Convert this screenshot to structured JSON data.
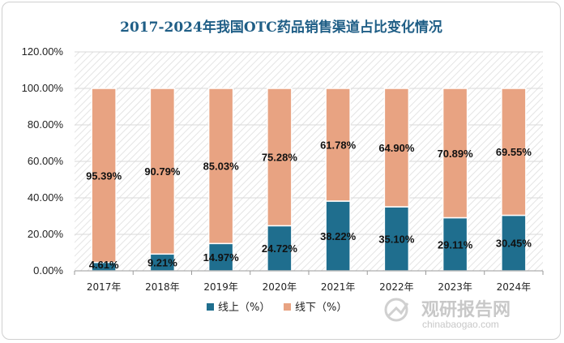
{
  "chart_data": {
    "type": "bar",
    "stacked": true,
    "title": "2017-2024年我国OTC药品销售渠道占比变化情况",
    "categories": [
      "2017年",
      "2018年",
      "2019年",
      "2020年",
      "2021年",
      "2022年",
      "2023年",
      "2024年"
    ],
    "series": [
      {
        "name": "线上（%）",
        "color": "#1f6e8e",
        "values": [
          4.61,
          9.21,
          14.97,
          24.72,
          38.22,
          35.1,
          29.11,
          30.45
        ],
        "labels": [
          "4.61%",
          "9.21%",
          "14.97%",
          "24.72%",
          "38.22%",
          "35.10%",
          "29.11%",
          "30.45%"
        ]
      },
      {
        "name": "线下（%）",
        "color": "#e8a382",
        "values": [
          95.39,
          90.79,
          85.03,
          75.28,
          61.78,
          64.9,
          70.89,
          69.55
        ],
        "labels": [
          "95.39%",
          "90.79%",
          "85.03%",
          "75.28%",
          "61.78%",
          "64.90%",
          "70.89%",
          "69.55%"
        ]
      }
    ],
    "ylim": [
      0,
      120
    ],
    "yticks": [
      "0.00%",
      "20.00%",
      "40.00%",
      "60.00%",
      "80.00%",
      "100.00%",
      "120.00%"
    ],
    "legend": "bottom"
  },
  "watermark": {
    "cn": "观研报告网",
    "en": "chinabaogao.com"
  }
}
